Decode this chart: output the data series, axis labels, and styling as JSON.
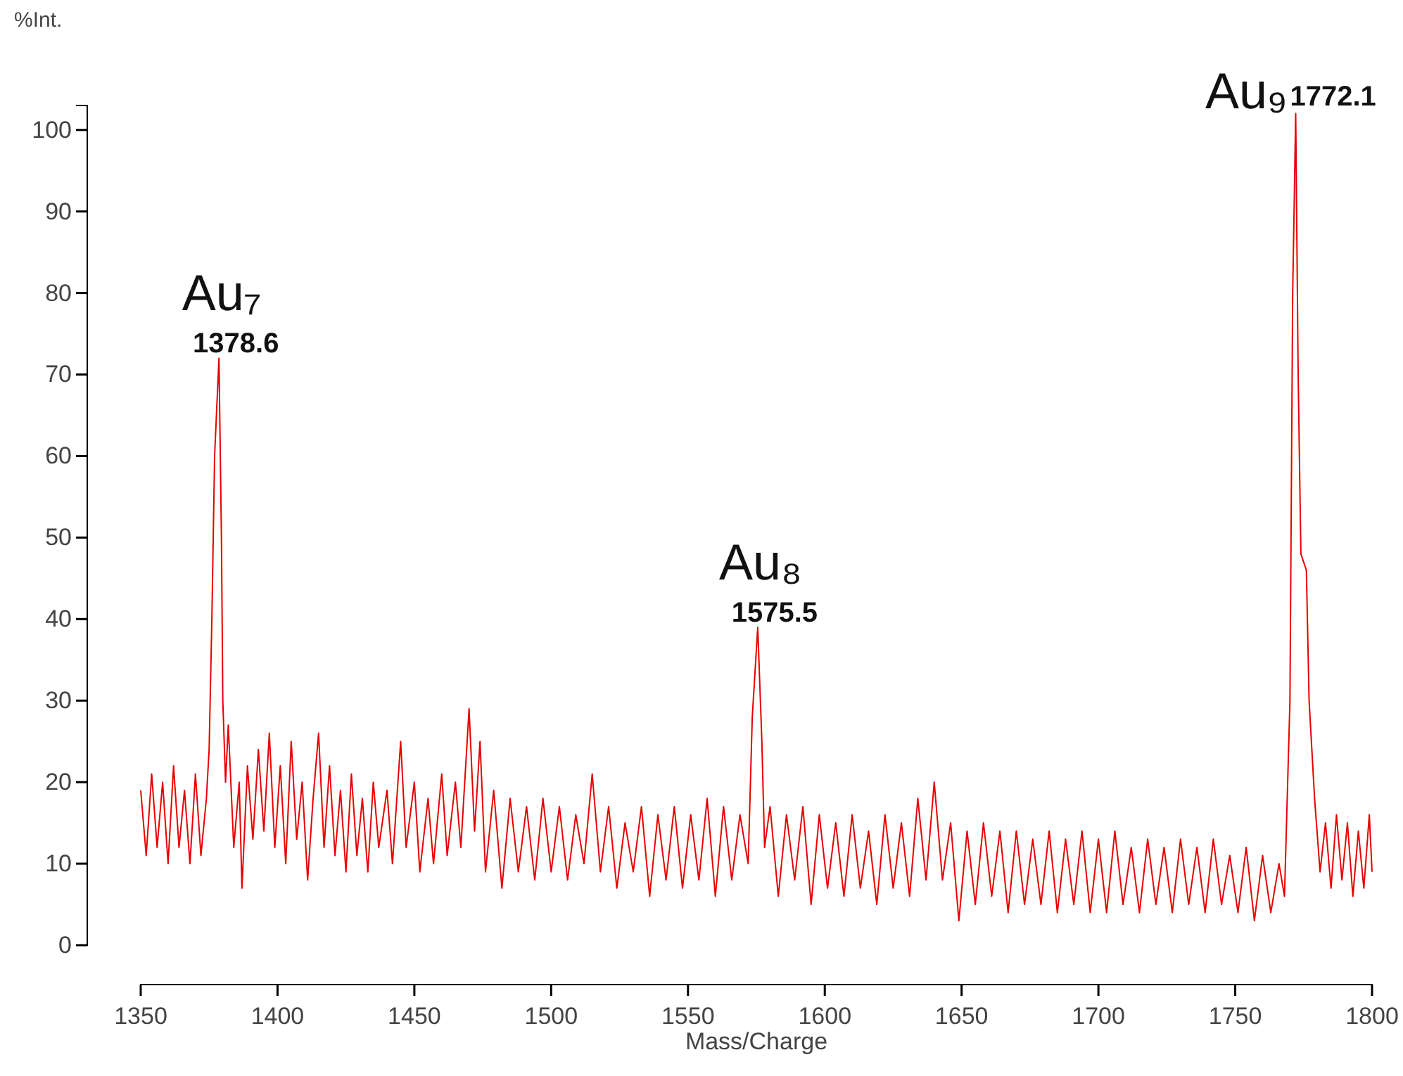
{
  "chart_data": {
    "type": "line",
    "xlabel": "Mass/Charge",
    "ylabel": "%Int.",
    "xlim": [
      1350,
      1800
    ],
    "ylim": [
      0,
      103
    ],
    "xticks": [
      1350,
      1400,
      1450,
      1500,
      1550,
      1600,
      1650,
      1700,
      1750,
      1800
    ],
    "yticks": [
      0,
      10,
      20,
      30,
      40,
      50,
      60,
      70,
      80,
      90,
      100
    ],
    "grid": false,
    "marker": "none",
    "line_style": "solid",
    "series": [
      {
        "color": "#e80000",
        "x": [
          1350,
          1352,
          1354,
          1356,
          1358,
          1360,
          1362,
          1364,
          1366,
          1368,
          1370,
          1372,
          1374,
          1375,
          1376,
          1377,
          1378.6,
          1379.5,
          1380,
          1381,
          1382,
          1384,
          1386,
          1387,
          1389,
          1391,
          1393,
          1395,
          1397,
          1399,
          1401,
          1403,
          1405,
          1407,
          1409,
          1411,
          1413,
          1415,
          1417,
          1419,
          1421,
          1423,
          1425,
          1427,
          1429,
          1431,
          1433,
          1435,
          1437,
          1440,
          1442,
          1445,
          1447,
          1450,
          1452,
          1455,
          1457,
          1460,
          1462,
          1465,
          1467,
          1470,
          1472,
          1474,
          1476,
          1479,
          1482,
          1485,
          1488,
          1491,
          1494,
          1497,
          1500,
          1503,
          1506,
          1509,
          1512,
          1515,
          1518,
          1521,
          1524,
          1527,
          1530,
          1533,
          1536,
          1539,
          1542,
          1545,
          1548,
          1551,
          1554,
          1557,
          1560,
          1563,
          1566,
          1569,
          1572,
          1573.5,
          1575.5,
          1577,
          1578,
          1580,
          1583,
          1586,
          1589,
          1592,
          1595,
          1598,
          1601,
          1604,
          1607,
          1610,
          1613,
          1616,
          1619,
          1622,
          1625,
          1628,
          1631,
          1634,
          1637,
          1640,
          1643,
          1646,
          1649,
          1652,
          1655,
          1658,
          1661,
          1664,
          1667,
          1670,
          1673,
          1676,
          1679,
          1682,
          1685,
          1688,
          1691,
          1694,
          1697,
          1700,
          1703,
          1706,
          1709,
          1712,
          1715,
          1718,
          1721,
          1724,
          1727,
          1730,
          1733,
          1736,
          1739,
          1742,
          1745,
          1748,
          1751,
          1754,
          1757,
          1760,
          1763,
          1766,
          1768,
          1770,
          1771,
          1772.1,
          1773,
          1774,
          1775,
          1776,
          1777,
          1779,
          1781,
          1783,
          1785,
          1787,
          1789,
          1791,
          1793,
          1795,
          1797,
          1799,
          1800
        ],
        "values": [
          19,
          11,
          21,
          12,
          20,
          10,
          22,
          12,
          19,
          10,
          21,
          11,
          18,
          24,
          40,
          60,
          72,
          50,
          30,
          20,
          27,
          12,
          20,
          7,
          22,
          13,
          24,
          14,
          26,
          12,
          22,
          10,
          25,
          13,
          20,
          8,
          18,
          26,
          12,
          22,
          11,
          19,
          9,
          21,
          11,
          18,
          9,
          20,
          12,
          19,
          10,
          25,
          12,
          20,
          9,
          18,
          10,
          21,
          11,
          20,
          12,
          29,
          14,
          25,
          9,
          19,
          7,
          18,
          9,
          17,
          8,
          18,
          9,
          17,
          8,
          16,
          10,
          21,
          9,
          17,
          7,
          15,
          9,
          17,
          6,
          16,
          8,
          17,
          7,
          16,
          8,
          18,
          6,
          17,
          8,
          16,
          10,
          28,
          39,
          25,
          12,
          17,
          6,
          16,
          8,
          17,
          5,
          16,
          7,
          15,
          6,
          16,
          7,
          14,
          5,
          16,
          7,
          15,
          6,
          18,
          8,
          20,
          8,
          15,
          3,
          14,
          5,
          15,
          6,
          14,
          4,
          14,
          5,
          13,
          5,
          14,
          4,
          13,
          5,
          14,
          4,
          13,
          4,
          14,
          5,
          12,
          4,
          13,
          5,
          12,
          4,
          13,
          5,
          12,
          4,
          13,
          5,
          11,
          4,
          12,
          3,
          11,
          4,
          10,
          6,
          30,
          80,
          102,
          70,
          48,
          47,
          46,
          30,
          18,
          9,
          15,
          7,
          16,
          8,
          15,
          6,
          14,
          7,
          16,
          9
        ]
      }
    ],
    "annotations": [
      {
        "text": "Au₇",
        "x": 1378.6,
        "y": 72
      },
      {
        "text": "1378.6",
        "x": 1378.6,
        "y": 72
      },
      {
        "text": "Au₈",
        "x": 1575.5,
        "y": 39
      },
      {
        "text": "1575.5",
        "x": 1575.5,
        "y": 39
      },
      {
        "text": "Au₉",
        "x": 1772.1,
        "y": 102
      },
      {
        "text": "1772.1",
        "x": 1772.1,
        "y": 102
      }
    ]
  }
}
